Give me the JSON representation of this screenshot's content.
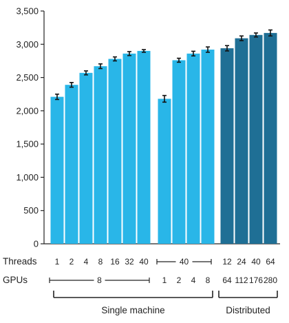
{
  "chart_data": {
    "type": "bar",
    "title": "",
    "xlabel": "",
    "ylabel": "",
    "ylim": [
      0,
      3500
    ],
    "yticks": [
      "0",
      "500",
      "1,000",
      "1,500",
      "2,000",
      "2,500",
      "3,000",
      "3,500"
    ],
    "grid": false,
    "colors": {
      "single_machine": "#29b6e8",
      "distributed": "#1f6f95",
      "error_bar": "#111111"
    },
    "groups": [
      {
        "label": "Single machine",
        "bars": [
          {
            "threads": "1",
            "gpus": "8",
            "value": 2210,
            "err": 40
          },
          {
            "threads": "2",
            "gpus": "8",
            "value": 2390,
            "err": 35
          },
          {
            "threads": "4",
            "gpus": "8",
            "value": 2570,
            "err": 30
          },
          {
            "threads": "8",
            "gpus": "8",
            "value": 2670,
            "err": 35
          },
          {
            "threads": "16",
            "gpus": "8",
            "value": 2780,
            "err": 30
          },
          {
            "threads": "32",
            "gpus": "8",
            "value": 2860,
            "err": 30
          },
          {
            "threads": "40",
            "gpus": "8",
            "value": 2900,
            "err": 20
          },
          {
            "threads": "40",
            "gpus": "1",
            "value": 2180,
            "err": 50
          },
          {
            "threads": "40",
            "gpus": "2",
            "value": 2760,
            "err": 30
          },
          {
            "threads": "40",
            "gpus": "4",
            "value": 2860,
            "err": 35
          },
          {
            "threads": "40",
            "gpus": "8",
            "value": 2920,
            "err": 40
          }
        ]
      },
      {
        "label": "Distributed",
        "bars": [
          {
            "threads": "12",
            "gpus": "64",
            "value": 2940,
            "err": 40
          },
          {
            "threads": "24",
            "gpus": "112",
            "value": 3090,
            "err": 35
          },
          {
            "threads": "40",
            "gpus": "176",
            "value": 3140,
            "err": 30
          },
          {
            "threads": "64",
            "gpus": "280",
            "value": 3170,
            "err": 45
          }
        ]
      }
    ],
    "rows": {
      "threads_label": "Threads",
      "gpus_label": "GPUs",
      "threads_ticks": [
        "1",
        "2",
        "4",
        "8",
        "16",
        "32",
        "40"
      ],
      "threads_span": "40",
      "threads_dist": [
        "12",
        "24",
        "40",
        "64"
      ],
      "gpus_span": "8",
      "gpus_ticks": [
        "1",
        "2",
        "4",
        "8"
      ],
      "gpus_dist": [
        "64",
        "112",
        "176",
        "280"
      ]
    }
  }
}
